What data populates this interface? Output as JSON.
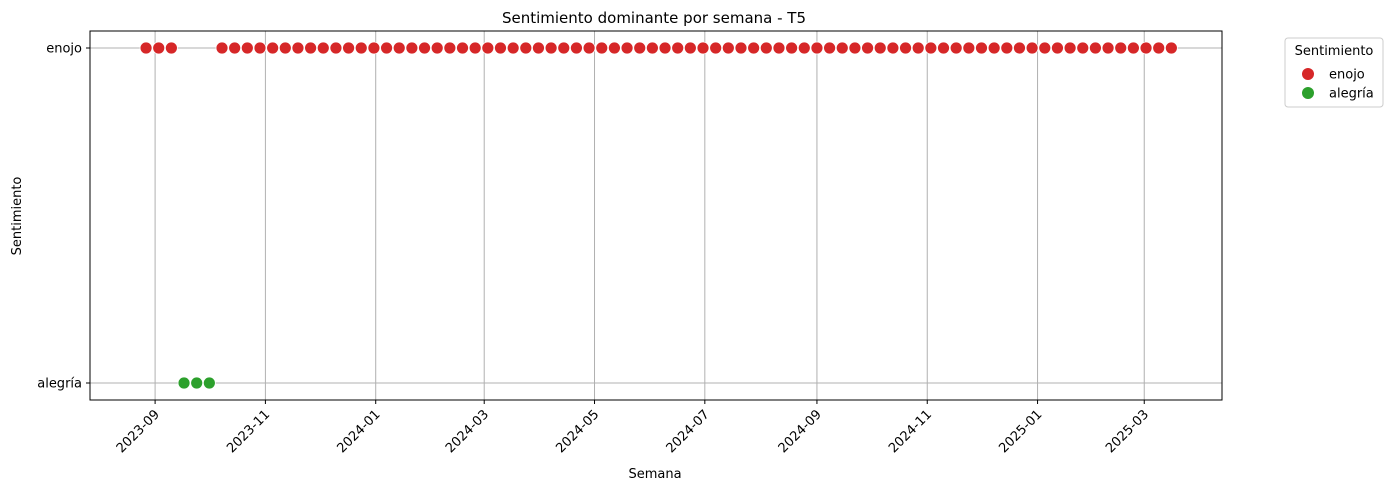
{
  "chart_data": {
    "type": "scatter",
    "title": "Sentimiento dominante por semana - T5",
    "xlabel": "Semana",
    "ylabel": "Sentimiento",
    "x_axis": "date",
    "y_categories": [
      "alegría",
      "enojo"
    ],
    "xlim": [
      "2023-07-27",
      "2025-04-13"
    ],
    "x_ticks": [
      "2023-09",
      "2023-11",
      "2024-01",
      "2024-03",
      "2024-05",
      "2024-07",
      "2024-09",
      "2024-11",
      "2025-01",
      "2025-03"
    ],
    "grid": true,
    "legend": {
      "title": "Sentimiento",
      "placement": "outside-top-right",
      "entries": [
        {
          "label": "enojo",
          "color": "#d62728"
        },
        {
          "label": "alegría",
          "color": "#2ca02c"
        }
      ]
    },
    "series": [
      {
        "name": "enojo",
        "color": "#d62728",
        "y": "enojo",
        "x": [
          "2023-08-27",
          "2023-09-03",
          "2023-09-10",
          "2023-10-08",
          "2023-10-15",
          "2023-10-22",
          "2023-10-29",
          "2023-11-05",
          "2023-11-12",
          "2023-11-19",
          "2023-11-26",
          "2023-12-03",
          "2023-12-10",
          "2023-12-17",
          "2023-12-24",
          "2023-12-31",
          "2024-01-07",
          "2024-01-14",
          "2024-01-21",
          "2024-01-28",
          "2024-02-04",
          "2024-02-11",
          "2024-02-18",
          "2024-02-25",
          "2024-03-03",
          "2024-03-10",
          "2024-03-17",
          "2024-03-24",
          "2024-03-31",
          "2024-04-07",
          "2024-04-14",
          "2024-04-21",
          "2024-04-28",
          "2024-05-05",
          "2024-05-12",
          "2024-05-19",
          "2024-05-26",
          "2024-06-02",
          "2024-06-09",
          "2024-06-16",
          "2024-06-23",
          "2024-06-30",
          "2024-07-07",
          "2024-07-14",
          "2024-07-21",
          "2024-07-28",
          "2024-08-04",
          "2024-08-11",
          "2024-08-18",
          "2024-08-25",
          "2024-09-01",
          "2024-09-08",
          "2024-09-15",
          "2024-09-22",
          "2024-09-29",
          "2024-10-06",
          "2024-10-13",
          "2024-10-20",
          "2024-10-27",
          "2024-11-03",
          "2024-11-10",
          "2024-11-17",
          "2024-11-24",
          "2024-12-01",
          "2024-12-08",
          "2024-12-15",
          "2024-12-22",
          "2024-12-29",
          "2025-01-05",
          "2025-01-12",
          "2025-01-19",
          "2025-01-26",
          "2025-02-02",
          "2025-02-09",
          "2025-02-16",
          "2025-02-23",
          "2025-03-02",
          "2025-03-09",
          "2025-03-16"
        ]
      },
      {
        "name": "alegría",
        "color": "#2ca02c",
        "y": "alegría",
        "x": [
          "2023-09-17",
          "2023-09-24",
          "2023-10-01"
        ]
      }
    ]
  }
}
